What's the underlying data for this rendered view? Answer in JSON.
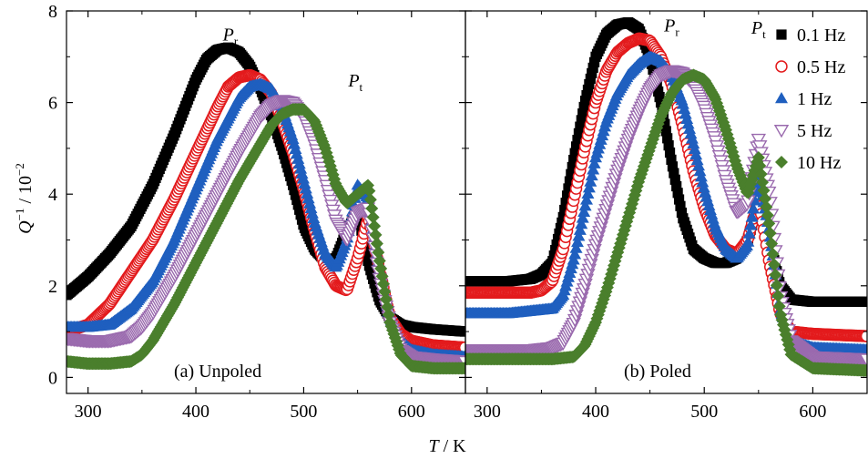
{
  "figure": {
    "xlabel_italic": "T",
    "xlabel_unit": " / K",
    "ylabel_base": "Q",
    "ylabel_sup": "−1",
    "ylabel_rest": " / 10",
    "ylabel_sup2": "−2"
  },
  "chart_data": [
    {
      "type": "scatter",
      "panel_label": "(a) Unpoled",
      "xlim": [
        280,
        650
      ],
      "ylim": [
        -0.35,
        8
      ],
      "x_ticks": [
        300,
        400,
        500,
        600
      ],
      "y_ticks": [
        0,
        2,
        4,
        6,
        8
      ],
      "annotations": [
        {
          "main": "P",
          "sub": "r",
          "x": 432,
          "y": 7.35
        },
        {
          "main": "P",
          "sub": "t",
          "x": 548,
          "y": 6.35
        }
      ],
      "series": [
        {
          "name": "0.1 Hz",
          "marker": "square-filled",
          "color": "#000000",
          "x": [
            280,
            300,
            320,
            340,
            360,
            380,
            400,
            410,
            420,
            430,
            440,
            450,
            460,
            470,
            480,
            490,
            500,
            510,
            520,
            530,
            540,
            550,
            560,
            570,
            580,
            590,
            600,
            620,
            650
          ],
          "y": [
            1.8,
            2.2,
            2.7,
            3.3,
            4.2,
            5.3,
            6.5,
            6.95,
            7.15,
            7.2,
            7.1,
            6.8,
            6.3,
            5.7,
            5.0,
            4.2,
            3.3,
            2.8,
            2.55,
            2.6,
            3.2,
            3.6,
            2.5,
            1.7,
            1.3,
            1.15,
            1.1,
            1.05,
            1.0
          ]
        },
        {
          "name": "0.5 Hz",
          "marker": "circle-open",
          "color": "#e31a1c",
          "x": [
            280,
            300,
            320,
            340,
            360,
            380,
            400,
            420,
            430,
            440,
            450,
            460,
            470,
            480,
            490,
            500,
            510,
            520,
            530,
            540,
            550,
            560,
            570,
            580,
            590,
            600,
            620,
            650
          ],
          "y": [
            1.0,
            1.15,
            1.6,
            2.3,
            3.0,
            3.9,
            4.9,
            5.9,
            6.35,
            6.55,
            6.6,
            6.5,
            6.2,
            5.6,
            4.9,
            4.1,
            3.2,
            2.4,
            2.0,
            1.9,
            2.6,
            3.5,
            2.4,
            1.3,
            0.95,
            0.8,
            0.7,
            0.65
          ]
        },
        {
          "name": "1 Hz",
          "marker": "triangle-up-filled",
          "color": "#1f5fbf",
          "x": [
            280,
            300,
            320,
            340,
            360,
            380,
            400,
            420,
            440,
            450,
            460,
            470,
            480,
            490,
            500,
            510,
            520,
            530,
            540,
            550,
            560,
            570,
            580,
            590,
            600,
            620,
            650
          ],
          "y": [
            1.1,
            1.1,
            1.15,
            1.5,
            2.1,
            3.0,
            4.1,
            5.2,
            6.1,
            6.35,
            6.4,
            6.3,
            5.9,
            5.2,
            4.3,
            3.4,
            2.7,
            2.4,
            3.0,
            4.2,
            3.9,
            2.4,
            1.3,
            0.8,
            0.6,
            0.5,
            0.45
          ]
        },
        {
          "name": "5 Hz",
          "marker": "triangle-down-open",
          "color": "#9a6aae",
          "x": [
            280,
            300,
            320,
            340,
            350,
            360,
            380,
            400,
            420,
            440,
            460,
            470,
            480,
            490,
            500,
            510,
            520,
            530,
            540,
            550,
            560,
            570,
            580,
            590,
            600,
            620,
            650
          ],
          "y": [
            0.85,
            0.8,
            0.8,
            0.9,
            1.1,
            1.4,
            2.2,
            3.1,
            4.0,
            4.9,
            5.7,
            5.95,
            6.05,
            6.0,
            5.7,
            5.1,
            4.3,
            3.4,
            3.0,
            3.6,
            3.7,
            2.2,
            1.2,
            0.6,
            0.45,
            0.4,
            0.35
          ]
        },
        {
          "name": "10 Hz",
          "marker": "diamond-filled",
          "color": "#4a7f2c",
          "x": [
            280,
            300,
            320,
            340,
            350,
            360,
            380,
            400,
            420,
            440,
            460,
            470,
            480,
            490,
            500,
            510,
            520,
            530,
            540,
            550,
            560,
            570,
            580,
            590,
            600,
            620,
            650
          ],
          "y": [
            0.35,
            0.3,
            0.3,
            0.35,
            0.5,
            0.8,
            1.6,
            2.5,
            3.4,
            4.3,
            5.1,
            5.5,
            5.75,
            5.85,
            5.85,
            5.6,
            5.0,
            4.2,
            3.8,
            4.0,
            4.2,
            2.6,
            1.2,
            0.5,
            0.25,
            0.2,
            0.2
          ]
        }
      ]
    },
    {
      "type": "scatter",
      "panel_label": "(b) Poled",
      "xlim": [
        280,
        650
      ],
      "ylim": [
        -0.35,
        8
      ],
      "x_ticks": [
        300,
        400,
        500,
        600
      ],
      "y_ticks": [
        0,
        2,
        4,
        6,
        8
      ],
      "annotations": [
        {
          "main": "P",
          "sub": "r",
          "x": 470,
          "y": 7.55
        },
        {
          "main": "P",
          "sub": "t",
          "x": 550,
          "y": 7.5
        }
      ],
      "series": [
        {
          "name": "0.1 Hz",
          "marker": "square-filled",
          "color": "#000000",
          "x": [
            280,
            300,
            320,
            340,
            350,
            360,
            370,
            380,
            390,
            400,
            410,
            420,
            430,
            440,
            450,
            460,
            470,
            480,
            490,
            500,
            510,
            520,
            530,
            540,
            550,
            560,
            570,
            580,
            600,
            650
          ],
          "y": [
            2.1,
            2.1,
            2.1,
            2.15,
            2.25,
            2.5,
            3.5,
            4.8,
            6.0,
            7.0,
            7.5,
            7.7,
            7.75,
            7.6,
            7.0,
            6.0,
            4.7,
            3.5,
            2.8,
            2.6,
            2.5,
            2.5,
            2.6,
            3.0,
            3.8,
            3.0,
            2.0,
            1.7,
            1.65,
            1.65
          ]
        },
        {
          "name": "0.5 Hz",
          "marker": "circle-open",
          "color": "#e31a1c",
          "x": [
            280,
            300,
            320,
            340,
            350,
            360,
            370,
            380,
            390,
            400,
            410,
            420,
            430,
            440,
            450,
            460,
            470,
            480,
            490,
            500,
            510,
            520,
            530,
            540,
            550,
            560,
            570,
            580,
            600,
            650
          ],
          "y": [
            1.85,
            1.85,
            1.85,
            1.85,
            1.9,
            2.1,
            2.8,
            3.9,
            5.0,
            6.0,
            6.7,
            7.1,
            7.3,
            7.4,
            7.35,
            7.0,
            6.4,
            5.5,
            4.5,
            3.7,
            3.1,
            2.8,
            2.7,
            3.0,
            3.9,
            2.5,
            1.4,
            1.0,
            0.95,
            0.9
          ]
        },
        {
          "name": "1 Hz",
          "marker": "triangle-up-filled",
          "color": "#1f5fbf",
          "x": [
            280,
            300,
            320,
            340,
            360,
            370,
            380,
            390,
            400,
            410,
            420,
            430,
            440,
            450,
            460,
            470,
            480,
            490,
            500,
            510,
            520,
            530,
            540,
            550,
            560,
            570,
            580,
            600,
            650
          ],
          "y": [
            1.4,
            1.4,
            1.4,
            1.45,
            1.5,
            1.8,
            2.6,
            3.7,
            4.8,
            5.6,
            6.2,
            6.6,
            6.85,
            7.0,
            6.9,
            6.6,
            6.0,
            5.1,
            4.1,
            3.3,
            2.8,
            2.6,
            2.9,
            4.4,
            3.2,
            1.5,
            0.8,
            0.65,
            0.6
          ]
        },
        {
          "name": "5 Hz",
          "marker": "triangle-down-open",
          "color": "#9a6aae",
          "x": [
            280,
            300,
            320,
            340,
            360,
            370,
            380,
            390,
            400,
            410,
            420,
            430,
            440,
            450,
            460,
            470,
            480,
            490,
            500,
            510,
            520,
            530,
            540,
            550,
            560,
            570,
            580,
            600,
            650
          ],
          "y": [
            0.6,
            0.6,
            0.6,
            0.6,
            0.65,
            0.75,
            1.2,
            2.0,
            2.9,
            3.7,
            4.5,
            5.2,
            5.8,
            6.3,
            6.6,
            6.7,
            6.65,
            6.4,
            5.9,
            5.2,
            4.3,
            3.6,
            3.8,
            5.2,
            4.0,
            1.8,
            0.8,
            0.45,
            0.4
          ]
        },
        {
          "name": "10 Hz",
          "marker": "diamond-filled",
          "color": "#4a7f2c",
          "x": [
            280,
            300,
            320,
            340,
            360,
            380,
            390,
            400,
            410,
            420,
            430,
            440,
            450,
            460,
            470,
            480,
            490,
            500,
            510,
            520,
            530,
            540,
            550,
            560,
            570,
            580,
            600,
            650
          ],
          "y": [
            0.4,
            0.4,
            0.4,
            0.4,
            0.4,
            0.45,
            0.7,
            1.2,
            1.9,
            2.7,
            3.5,
            4.3,
            5.0,
            5.7,
            6.2,
            6.5,
            6.6,
            6.5,
            6.1,
            5.4,
            4.6,
            4.0,
            4.8,
            3.3,
            1.4,
            0.5,
            0.2,
            0.15
          ]
        }
      ]
    }
  ]
}
